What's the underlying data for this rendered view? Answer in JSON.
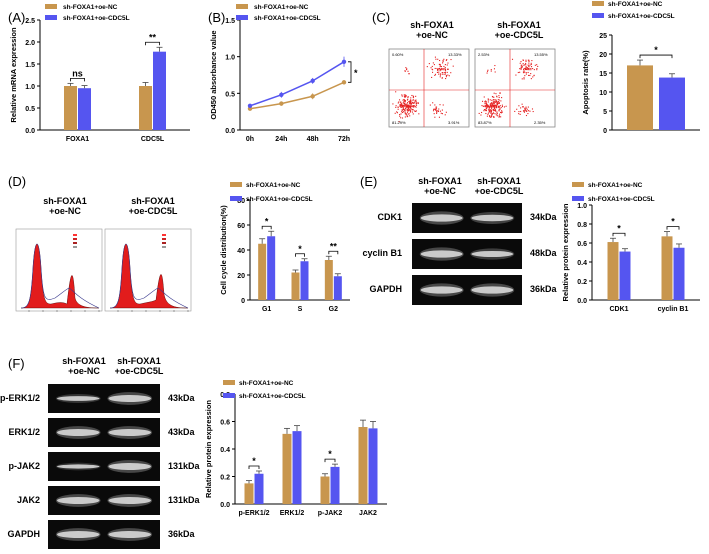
{
  "panels": {
    "A": "(A)",
    "B": "(B)",
    "C": "(C)",
    "D": "(D)",
    "E": "(E)",
    "F": "(F)"
  },
  "colors": {
    "nc": "#c8964e",
    "cdc": "#5555f0"
  },
  "legend": {
    "nc": "sh-FOXA1+oe-NC",
    "cdc": "sh-FOXA1+oe-CDC5L"
  },
  "group_headers": {
    "nc_line1": "sh-FOXA1",
    "nc_line2": "+oe-NC",
    "cdc_line1": "sh-FOXA1",
    "cdc_line2": "+oe-CDC5L"
  },
  "flow_quadrants": {
    "nc": [
      "0.60%",
      "13.33%",
      "81.29%",
      "3.91%"
    ],
    "cdc": [
      "2.53%",
      "13.55%",
      "83.87%",
      "2.35%"
    ]
  },
  "blot_E": {
    "rows": [
      {
        "name": "CDK1",
        "kda": "34kDa"
      },
      {
        "name": "cyclin B1",
        "kda": "48kDa"
      },
      {
        "name": "GAPDH",
        "kda": "36kDa"
      }
    ]
  },
  "blot_F": {
    "rows": [
      {
        "name": "p-ERK1/2",
        "kda": "43kDa"
      },
      {
        "name": "ERK1/2",
        "kda": "43kDa"
      },
      {
        "name": "p-JAK2",
        "kda": "131kDa"
      },
      {
        "name": "JAK2",
        "kda": "131kDa"
      },
      {
        "name": "GAPDH",
        "kda": "36kDa"
      }
    ]
  },
  "chart_data": [
    {
      "id": "A",
      "type": "bar",
      "categories": [
        "FOXA1",
        "CDC5L"
      ],
      "series": [
        {
          "name": "sh-FOXA1+oe-NC",
          "values": [
            1.0,
            1.0
          ],
          "errors": [
            0.06,
            0.08
          ]
        },
        {
          "name": "sh-FOXA1+oe-CDC5L",
          "values": [
            0.95,
            1.78
          ],
          "errors": [
            0.06,
            0.1
          ]
        }
      ],
      "ylabel": "Relative mRNA expression",
      "ylim": [
        0,
        2.5
      ],
      "yticks": [
        0,
        0.5,
        1.0,
        1.5,
        2.0,
        2.5
      ],
      "annotations": [
        "ns",
        "**"
      ],
      "legend": "top-left"
    },
    {
      "id": "B",
      "type": "line",
      "categories": [
        "0h",
        "24h",
        "48h",
        "72h"
      ],
      "series": [
        {
          "name": "sh-FOXA1+oe-NC",
          "values": [
            0.29,
            0.36,
            0.46,
            0.65
          ],
          "errors": [
            0.02,
            0.03,
            0.04,
            0.03
          ]
        },
        {
          "name": "sh-FOXA1+oe-CDC5L",
          "values": [
            0.33,
            0.48,
            0.67,
            0.93
          ],
          "errors": [
            0.02,
            0.04,
            0.04,
            0.07
          ]
        }
      ],
      "ylabel": "OD450 absorbance value",
      "ylim": [
        0,
        1.5
      ],
      "yticks": [
        0,
        0.5,
        1.0,
        1.5
      ],
      "annotations": [
        "*"
      ],
      "legend": "top-left"
    },
    {
      "id": "C",
      "type": "bar",
      "categories": [
        ""
      ],
      "series": [
        {
          "name": "sh-FOXA1+oe-NC",
          "values": [
            17.0
          ],
          "errors": [
            1.4
          ]
        },
        {
          "name": "sh-FOXA1+oe-CDC5L",
          "values": [
            13.8
          ],
          "errors": [
            1.0
          ]
        }
      ],
      "ylabel": "Apoptosis rate(%)",
      "ylim": [
        0,
        25
      ],
      "yticks": [
        0,
        5,
        10,
        15,
        20,
        25
      ],
      "annotations": [
        "*"
      ],
      "legend": "top"
    },
    {
      "id": "D",
      "type": "bar",
      "categories": [
        "G1",
        "S",
        "G2"
      ],
      "series": [
        {
          "name": "sh-FOXA1+oe-NC",
          "values": [
            45,
            22,
            32
          ],
          "errors": [
            4,
            2,
            3
          ]
        },
        {
          "name": "sh-FOXA1+oe-CDC5L",
          "values": [
            51,
            31,
            19
          ],
          "errors": [
            4,
            2,
            2
          ]
        }
      ],
      "ylabel": "Cell cycle distribution(%)",
      "ylim": [
        0,
        80
      ],
      "yticks": [
        0,
        20,
        40,
        60,
        80
      ],
      "annotations": [
        "*",
        "*",
        "**"
      ],
      "legend": "top"
    },
    {
      "id": "E",
      "type": "bar",
      "categories": [
        "CDK1",
        "cyclin B1"
      ],
      "series": [
        {
          "name": "sh-FOXA1+oe-NC",
          "values": [
            0.61,
            0.67
          ],
          "errors": [
            0.04,
            0.05
          ]
        },
        {
          "name": "sh-FOXA1+oe-CDC5L",
          "values": [
            0.51,
            0.55
          ],
          "errors": [
            0.03,
            0.04
          ]
        }
      ],
      "ylabel": "Relative protein expression",
      "ylim": [
        0,
        1.0
      ],
      "yticks": [
        0,
        0.2,
        0.4,
        0.6,
        0.8,
        1.0
      ],
      "annotations": [
        "*",
        "*"
      ],
      "legend": "top"
    },
    {
      "id": "F",
      "type": "bar",
      "categories": [
        "p-ERK1/2",
        "ERK1/2",
        "p-JAK2",
        "JAK2"
      ],
      "series": [
        {
          "name": "sh-FOXA1+oe-NC",
          "values": [
            0.15,
            0.51,
            0.2,
            0.56
          ],
          "errors": [
            0.02,
            0.04,
            0.02,
            0.05
          ]
        },
        {
          "name": "sh-FOXA1+oe-CDC5L",
          "values": [
            0.22,
            0.53,
            0.27,
            0.55
          ],
          "errors": [
            0.02,
            0.04,
            0.02,
            0.05
          ]
        }
      ],
      "ylabel": "Relative protein expression",
      "ylim": [
        0,
        0.8
      ],
      "yticks": [
        0,
        0.2,
        0.4,
        0.6,
        0.8
      ],
      "annotations": [
        "*",
        "*"
      ],
      "legend": "top"
    }
  ]
}
